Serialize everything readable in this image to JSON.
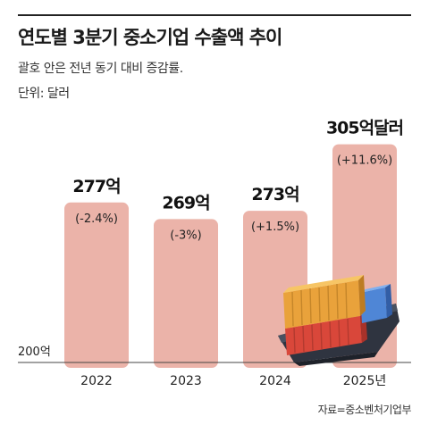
{
  "header": {
    "title": "연도별 3분기 중소기업 수출액 추이",
    "subtitle": "괄호 안은 전년 동기 대비 증감률.",
    "unit": "단위: 달러"
  },
  "footer": {
    "source": "자료=중소벤처기업부"
  },
  "colors": {
    "bar": "#ebb3a9",
    "title_rule": "#222222",
    "baseline": "#444444"
  },
  "illustration": {
    "name": "cargo-ship-icon",
    "container_colors": [
      "#e8a43a",
      "#e04a3c",
      "#5b8fd6"
    ]
  },
  "chart_data": {
    "type": "bar",
    "title": "연도별 3분기 중소기업 수출액 추이",
    "ylabel": "",
    "xlabel": "",
    "categories": [
      "2022",
      "2023",
      "2024",
      "2025년"
    ],
    "values": [
      277,
      269,
      273,
      305
    ],
    "value_labels": [
      "277억",
      "269억",
      "273억",
      "305억달러"
    ],
    "change_labels": [
      "(-2.4%)",
      "(-3%)",
      "(+1.5%)",
      "(+11.6%)"
    ],
    "y_baseline_label": "200억",
    "ylim": [
      200,
      310
    ],
    "grid": false
  }
}
